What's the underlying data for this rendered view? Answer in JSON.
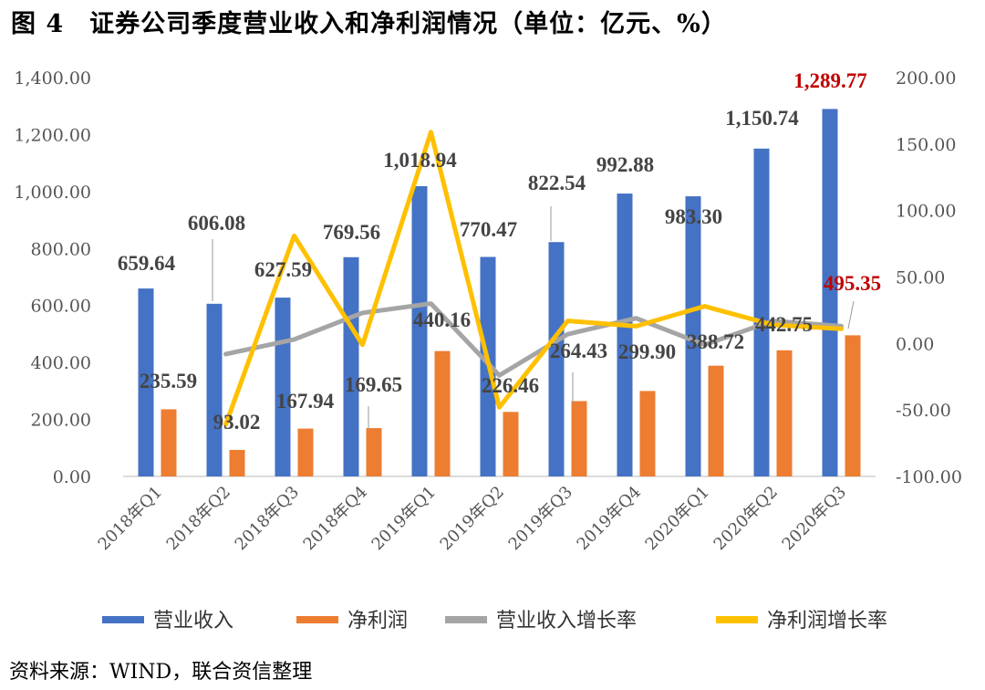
{
  "title": "图 4　证券公司季度营业收入和净利润情况（单位：亿元、%）",
  "source": "资料来源：WIND，联合资信整理",
  "colors": {
    "revenue": "#4472c4",
    "profit": "#ed7d31",
    "revenue_growth": "#a5a5a5",
    "profit_growth": "#ffc000",
    "highlight": "#c00000"
  },
  "chart_data": {
    "type": "bar",
    "categories": [
      "2018年Q1",
      "2018年Q2",
      "2018年Q3",
      "2018年Q4",
      "2019年Q1",
      "2019年Q2",
      "2019年Q3",
      "2019年Q4",
      "2020年Q1",
      "2020年Q2",
      "2020年Q3"
    ],
    "series": [
      {
        "name": "营业收入",
        "type": "bar",
        "axis": "left",
        "values": [
          659.64,
          606.08,
          627.59,
          769.56,
          1018.94,
          770.47,
          822.54,
          992.88,
          983.3,
          1150.74,
          1289.77
        ],
        "labels": [
          "659.64",
          "606.08",
          "627.59",
          "769.56",
          "1,018.94",
          "770.47",
          "822.54",
          "992.88",
          "983.30",
          "1,150.74",
          "1,289.77"
        ]
      },
      {
        "name": "净利润",
        "type": "bar",
        "axis": "left",
        "values": [
          235.59,
          93.02,
          167.94,
          169.65,
          440.16,
          226.46,
          264.43,
          299.9,
          388.72,
          442.75,
          495.35
        ],
        "labels": [
          "235.59",
          "93.02",
          "167.94",
          "169.65",
          "440.16",
          "226.46",
          "264.43",
          "299.90",
          "388.72",
          "442.75",
          "495.35"
        ]
      },
      {
        "name": "营业收入增长率",
        "type": "line",
        "axis": "right",
        "values": [
          null,
          -8,
          3,
          23,
          30,
          -24,
          7,
          19,
          -1,
          17,
          13
        ]
      },
      {
        "name": "净利润增长率",
        "type": "line",
        "axis": "right",
        "values": [
          null,
          -61,
          81,
          -1,
          159,
          -48,
          17,
          13,
          28,
          14,
          11
        ]
      }
    ],
    "left_axis": {
      "range": [
        0,
        1400
      ],
      "ticks": [
        "0.00",
        "200.00",
        "400.00",
        "600.00",
        "800.00",
        "1,000.00",
        "1,200.00",
        "1,400.00"
      ]
    },
    "right_axis": {
      "range": [
        -100,
        200
      ],
      "ticks": [
        "-100.00",
        "-50.00",
        "0.00",
        "50.00",
        "100.00",
        "150.00",
        "200.00"
      ]
    },
    "highlighted_labels": [
      "1,289.77",
      "495.35"
    ],
    "legend": [
      "营业收入",
      "净利润",
      "营业收入增长率",
      "净利润增长率"
    ],
    "legend_position": "bottom"
  }
}
